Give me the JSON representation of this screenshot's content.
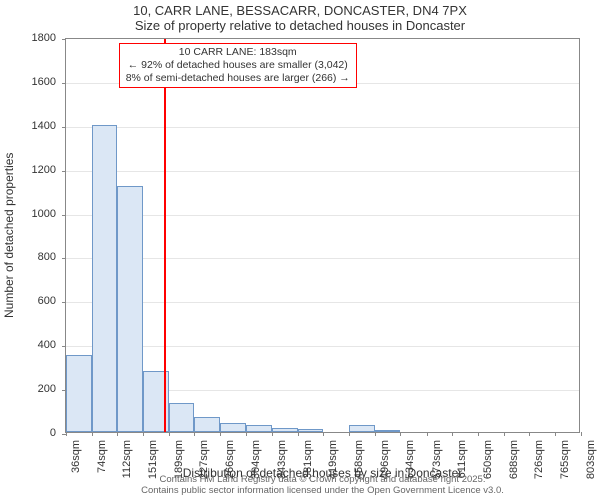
{
  "title_line1": "10, CARR LANE, BESSACARR, DONCASTER, DN4 7PX",
  "title_line2": "Size of property relative to detached houses in Doncaster",
  "ylabel": "Number of detached properties",
  "xlabel": "Distribution of detached houses by size in Doncaster",
  "attribution_line1": "Contains HM Land Registry data © Crown copyright and database right 2025.",
  "attribution_line2": "Contains public sector information licensed under the Open Government Licence v3.0.",
  "chart": {
    "type": "histogram",
    "background_color": "#ffffff",
    "bar_fill": "#dbe7f5",
    "bar_stroke": "#6f98c8",
    "grid_color": "#e6e6e6",
    "axis_color": "#888888",
    "text_color": "#333333",
    "attribution_color": "#666666",
    "annotation_border": "#ff0000",
    "marker_color": "#ff0000",
    "title_fontsize": 13,
    "label_fontsize": 12,
    "tick_fontsize": 11,
    "annotation_fontsize": 10.5,
    "attribution_fontsize": 9.5,
    "xlim": [
      36,
      803
    ],
    "ylim": [
      0,
      1800
    ],
    "ytick_step": 200,
    "categories": [
      "36sqm",
      "74sqm",
      "112sqm",
      "151sqm",
      "189sqm",
      "227sqm",
      "266sqm",
      "304sqm",
      "343sqm",
      "381sqm",
      "419sqm",
      "458sqm",
      "496sqm",
      "534sqm",
      "573sqm",
      "611sqm",
      "650sqm",
      "688sqm",
      "726sqm",
      "765sqm",
      "803sqm"
    ],
    "x_ticks_sqm": [
      36,
      74,
      112,
      151,
      189,
      227,
      266,
      304,
      343,
      381,
      419,
      458,
      496,
      534,
      573,
      611,
      650,
      688,
      726,
      765,
      803
    ],
    "values": [
      350,
      1400,
      1120,
      280,
      130,
      70,
      40,
      30,
      20,
      15,
      0,
      30,
      10,
      0,
      0,
      0,
      0,
      0,
      0,
      0
    ],
    "marker_x_sqm": 183,
    "marker_label_sqm": "183sqm",
    "annotation": {
      "line1": "10 CARR LANE: 183sqm",
      "line2": "← 92% of detached houses are smaller (3,042)",
      "line3": "8% of semi-detached houses are larger (266) →"
    }
  }
}
